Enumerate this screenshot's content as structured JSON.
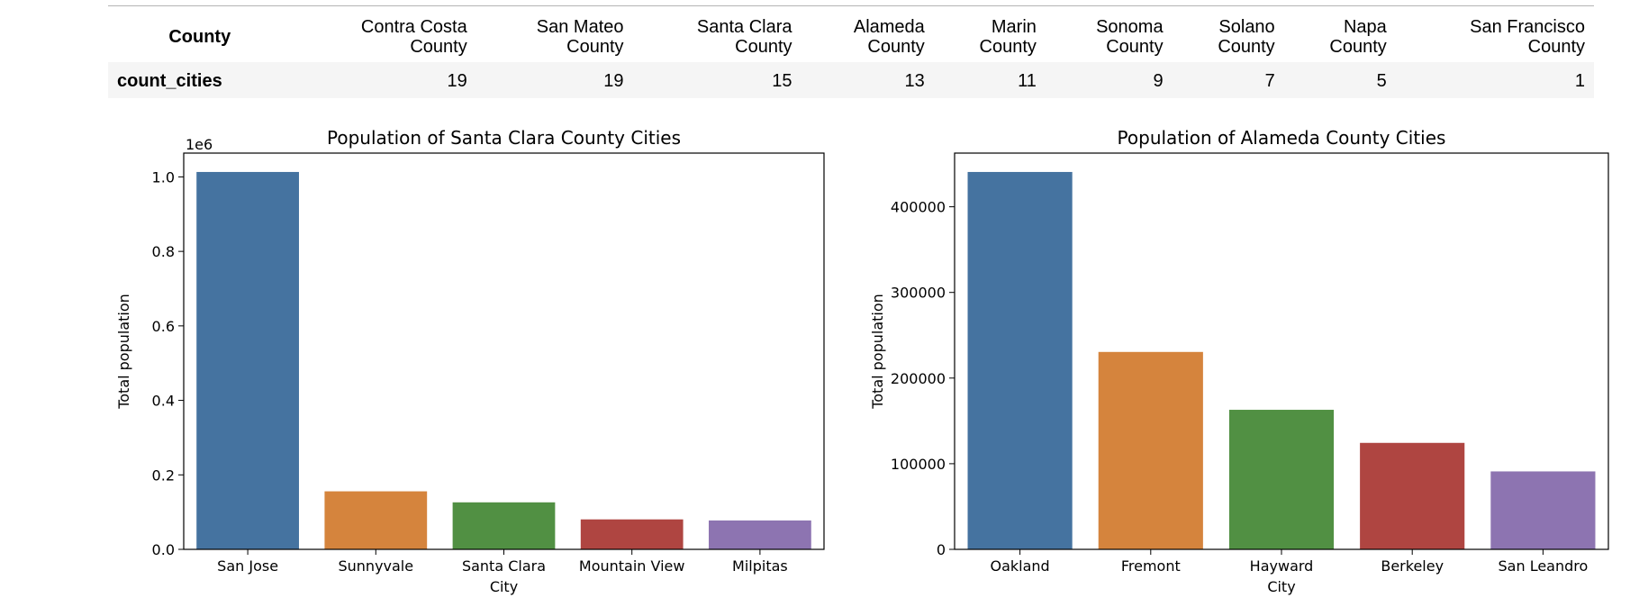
{
  "table": {
    "header_label": "County",
    "row_label": "count_cities",
    "columns": [
      {
        "line1": "Contra Costa",
        "line2": "County",
        "value": "19"
      },
      {
        "line1": "San Mateo",
        "line2": "County",
        "value": "19"
      },
      {
        "line1": "Santa Clara",
        "line2": "County",
        "value": "15"
      },
      {
        "line1": "Alameda",
        "line2": "County",
        "value": "13"
      },
      {
        "line1": "Marin",
        "line2": "County",
        "value": "11"
      },
      {
        "line1": "Sonoma",
        "line2": "County",
        "value": "9"
      },
      {
        "line1": "Solano",
        "line2": "County",
        "value": "7"
      },
      {
        "line1": "Napa",
        "line2": "County",
        "value": "5"
      },
      {
        "line1": "San Francisco",
        "line2": "County",
        "value": "1"
      }
    ]
  },
  "colors": [
    "#4573a0",
    "#d5843d",
    "#519043",
    "#af4541",
    "#8d74b1"
  ],
  "chart_data": [
    {
      "type": "bar",
      "title": "Population of Santa Clara County Cities",
      "xlabel": "City",
      "ylabel": "Total population",
      "offset_label": "1e6",
      "categories": [
        "San Jose",
        "Sunnyvale",
        "Santa Clara",
        "Mountain View",
        "Milpitas"
      ],
      "values": [
        1013240,
        155805,
        126215,
        80447,
        77604
      ],
      "ylim": [
        0,
        1063902
      ],
      "yticks": [
        0,
        200000,
        400000,
        600000,
        800000,
        1000000
      ],
      "ytick_labels": [
        "0.0",
        "0.2",
        "0.4",
        "0.6",
        "0.8",
        "1.0"
      ],
      "grid": false
    },
    {
      "type": "bar",
      "title": "Population of Alameda County Cities",
      "xlabel": "City",
      "ylabel": "Total population",
      "offset_label": "",
      "categories": [
        "Oakland",
        "Fremont",
        "Hayward",
        "Berkeley",
        "San Leandro"
      ],
      "values": [
        440646,
        230504,
        162954,
        124321,
        91008
      ],
      "ylim": [
        0,
        462678
      ],
      "yticks": [
        0,
        100000,
        200000,
        300000,
        400000
      ],
      "ytick_labels": [
        "0",
        "100000",
        "200000",
        "300000",
        "400000"
      ],
      "grid": false
    }
  ]
}
